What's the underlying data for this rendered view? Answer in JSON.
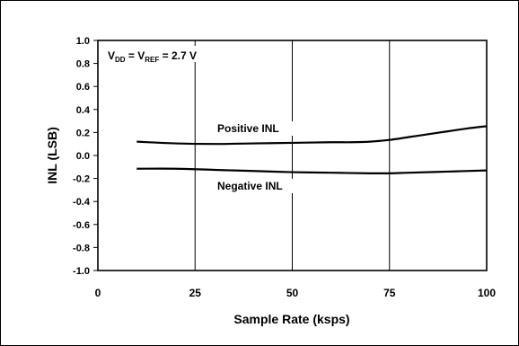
{
  "chart_data": {
    "type": "line",
    "title": "",
    "xlabel": "Sample Rate (ksps)",
    "ylabel": "INL (LSB)",
    "xlim": [
      0,
      100
    ],
    "ylim": [
      -1.0,
      1.0
    ],
    "x_ticks": [
      "0",
      "25",
      "50",
      "75",
      "100"
    ],
    "y_ticks": [
      "1.0",
      "0.8",
      "0.6",
      "0.4",
      "0.2",
      "0.0",
      "-0.2",
      "-0.4",
      "-0.6",
      "-0.8",
      "-1.0"
    ],
    "grid": {
      "vertical": true,
      "horizontal": false
    },
    "legend": "none",
    "conditions": {
      "segments": [
        {
          "text": "V",
          "sub": "DD"
        },
        {
          "text": " = V",
          "sub": "REF"
        },
        {
          "text": " = 2.7 V",
          "sub": ""
        }
      ]
    },
    "series": [
      {
        "name": "Positive INL",
        "x": [
          10,
          20,
          30,
          40,
          50,
          60,
          65,
          70,
          75,
          80,
          85,
          90,
          95,
          100
        ],
        "y": [
          0.12,
          0.105,
          0.1,
          0.105,
          0.11,
          0.115,
          0.115,
          0.12,
          0.135,
          0.16,
          0.185,
          0.21,
          0.235,
          0.255
        ]
      },
      {
        "name": "Negative INL",
        "x": [
          10,
          20,
          30,
          40,
          50,
          60,
          70,
          75,
          80,
          90,
          100
        ],
        "y": [
          -0.115,
          -0.115,
          -0.125,
          -0.135,
          -0.145,
          -0.15,
          -0.155,
          -0.155,
          -0.15,
          -0.14,
          -0.13
        ]
      }
    ]
  }
}
